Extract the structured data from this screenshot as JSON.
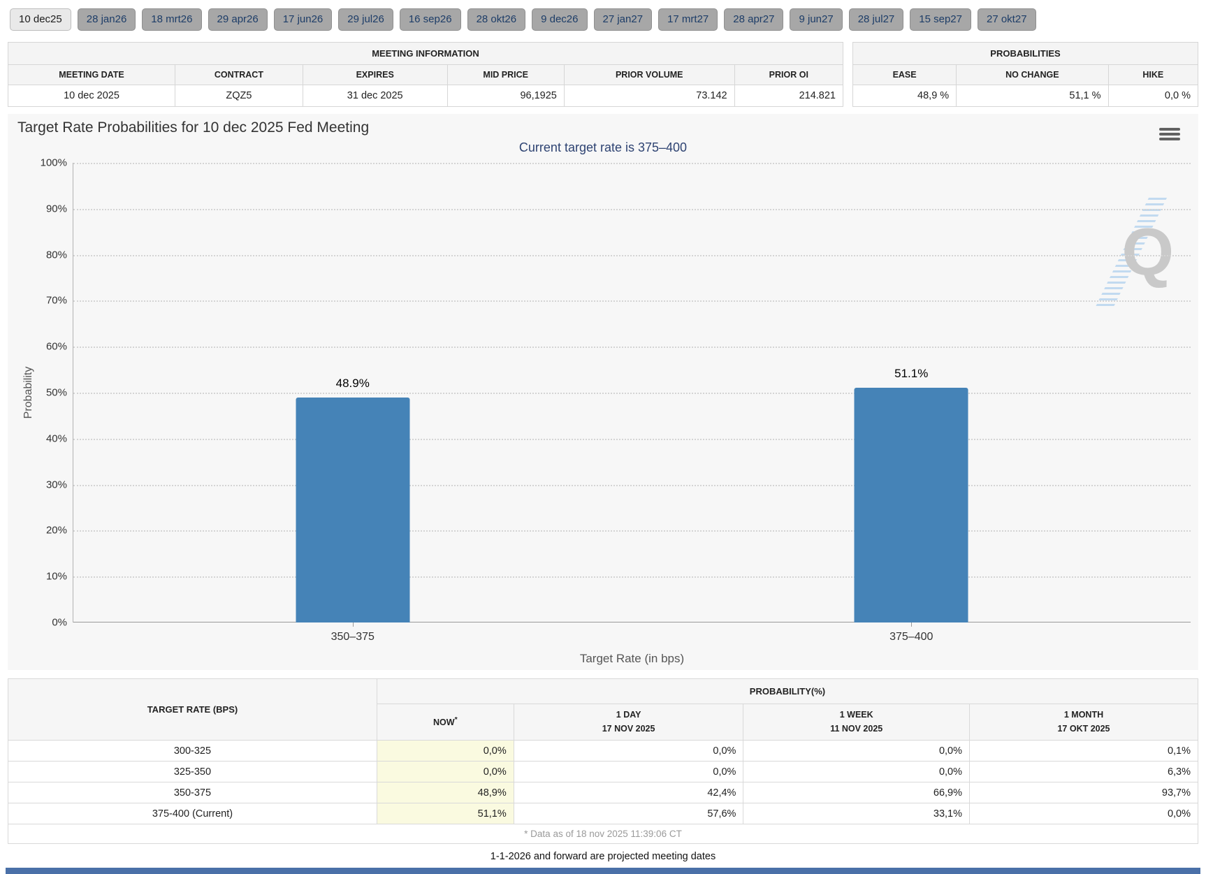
{
  "tabs": {
    "items": [
      {
        "label": "10 dec25",
        "selected": true
      },
      {
        "label": "28 jan26",
        "selected": false
      },
      {
        "label": "18 mrt26",
        "selected": false
      },
      {
        "label": "29 apr26",
        "selected": false
      },
      {
        "label": "17 jun26",
        "selected": false
      },
      {
        "label": "29 jul26",
        "selected": false
      },
      {
        "label": "16 sep26",
        "selected": false
      },
      {
        "label": "28 okt26",
        "selected": false
      },
      {
        "label": "9 dec26",
        "selected": false
      },
      {
        "label": "27 jan27",
        "selected": false
      },
      {
        "label": "17 mrt27",
        "selected": false
      },
      {
        "label": "28 apr27",
        "selected": false
      },
      {
        "label": "9 jun27",
        "selected": false
      },
      {
        "label": "28 jul27",
        "selected": false
      },
      {
        "label": "15 sep27",
        "selected": false
      },
      {
        "label": "27 okt27",
        "selected": false
      }
    ]
  },
  "meeting_info": {
    "title": "MEETING INFORMATION",
    "columns": [
      "MEETING DATE",
      "CONTRACT",
      "EXPIRES",
      "MID PRICE",
      "PRIOR VOLUME",
      "PRIOR OI"
    ],
    "row": {
      "meeting_date": "10 dec 2025",
      "contract": "ZQZ5",
      "expires": "31 dec 2025",
      "mid_price": "96,1925",
      "prior_volume": "73.142",
      "prior_oi": "214.821"
    }
  },
  "probabilities": {
    "title": "PROBABILITIES",
    "columns": [
      "EASE",
      "NO CHANGE",
      "HIKE"
    ],
    "row": {
      "ease": "48,9 %",
      "no_change": "51,1 %",
      "hike": "0,0 %"
    }
  },
  "chart_data": {
    "type": "bar",
    "title": "Target Rate Probabilities for 10 dec 2025 Fed Meeting",
    "subtitle": "Current target rate is 375–400",
    "categories": [
      "350–375",
      "375–400"
    ],
    "values": [
      48.9,
      51.1
    ],
    "bar_labels": [
      "48.9%",
      "51.1%"
    ],
    "xlabel": "Target Rate (in bps)",
    "ylabel": "Probability",
    "ylim": [
      0,
      100
    ],
    "ytick_step": 10,
    "ytick_suffix": "%",
    "grid": "dotted horizontal",
    "legend": "none",
    "bar_color": "#4583b7",
    "watermark_letter": "Q"
  },
  "history": {
    "header": {
      "rate": "TARGET RATE (BPS)",
      "group": "PROBABILITY(%)",
      "now": "NOW",
      "now_sup": "*",
      "day1": "1 DAY",
      "day1_date": "17 NOV 2025",
      "week1": "1 WEEK",
      "week1_date": "11 NOV 2025",
      "month1": "1 MONTH",
      "month1_date": "17 OKT 2025"
    },
    "rows": [
      {
        "rate": "300-325",
        "now": "0,0%",
        "day": "0,0%",
        "week": "0,0%",
        "month": "0,1%"
      },
      {
        "rate": "325-350",
        "now": "0,0%",
        "day": "0,0%",
        "week": "0,0%",
        "month": "6,3%"
      },
      {
        "rate": "350-375",
        "now": "48,9%",
        "day": "42,4%",
        "week": "66,9%",
        "month": "93,7%"
      },
      {
        "rate": "375-400 (Current)",
        "now": "51,1%",
        "day": "57,6%",
        "week": "33,1%",
        "month": "0,0%"
      }
    ],
    "footnote": "* Data as of 18 nov 2025 11:39:06 CT"
  },
  "footer": {
    "projected_note": "1-1-2026 and forward are projected meeting dates"
  }
}
